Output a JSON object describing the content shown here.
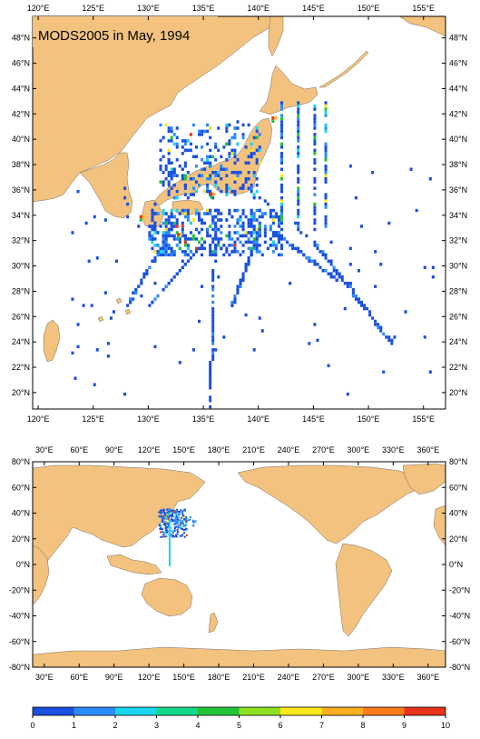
{
  "title": "MODS2005 in May, 1994",
  "colors": {
    "land": "#f2c27e",
    "sea": "#ffffff",
    "scale": [
      "#1a4fe0",
      "#2b8cff",
      "#1ad6f0",
      "#12d88a",
      "#22c43a",
      "#8ee020",
      "#ffe81a",
      "#ffb020",
      "#ff7a1a",
      "#e8321a"
    ]
  },
  "regional_map": {
    "lon_labels": [
      "120°E",
      "125°E",
      "130°E",
      "135°E",
      "140°E",
      "145°E",
      "150°E",
      "155°E"
    ],
    "lat_labels": [
      "48°N",
      "46°N",
      "44°N",
      "42°N",
      "40°N",
      "38°N",
      "36°N",
      "34°N",
      "32°N",
      "30°N",
      "28°N",
      "26°N",
      "24°N",
      "22°N",
      "20°N"
    ],
    "lon_range": [
      119.5,
      157
    ],
    "lat_range": [
      18.7,
      49.7
    ]
  },
  "global_map": {
    "lon_labels": [
      "30°E",
      "60°E",
      "90°E",
      "120°E",
      "150°E",
      "180°E",
      "210°E",
      "240°E",
      "270°E",
      "300°E",
      "330°E",
      "360°E"
    ],
    "lat_labels": [
      "80°N",
      "60°N",
      "40°N",
      "20°N",
      "0°N",
      "-20°N",
      "-40°N",
      "-60°N",
      "-80°N"
    ],
    "lon_range": [
      20,
      375
    ],
    "lat_range": [
      -80,
      80
    ]
  },
  "colorbar": {
    "tick_labels": [
      "0",
      "1",
      "2",
      "3",
      "4",
      "5",
      "6",
      "7",
      "8",
      "9",
      "10"
    ],
    "min": 0,
    "max": 10
  }
}
